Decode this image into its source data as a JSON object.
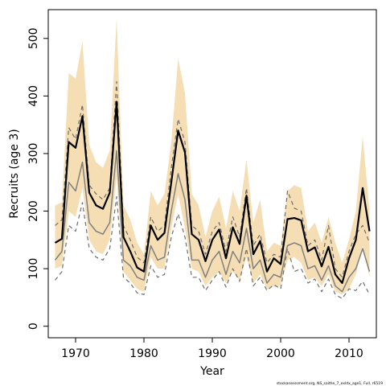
{
  "chart_data": {
    "type": "line",
    "xlabel": "Year",
    "ylabel": "Recruits (age 3)",
    "xlim": [
      1966,
      2014
    ],
    "ylim": [
      -20,
      550
    ],
    "xticks": [
      1970,
      1980,
      1990,
      2000,
      2010
    ],
    "yticks": [
      0,
      100,
      200,
      300,
      400,
      500
    ],
    "grid": false,
    "footnote": "stockassessment.org, NS_saithe_7_exldx_age1, Full, r6519",
    "colors": {
      "band": "#f5deb3",
      "main": "#000000",
      "secondary": "#808080"
    },
    "x": [
      1967,
      1968,
      1969,
      1970,
      1971,
      1972,
      1973,
      1974,
      1975,
      1976,
      1977,
      1978,
      1979,
      1980,
      1981,
      1982,
      1983,
      1984,
      1985,
      1986,
      1987,
      1988,
      1989,
      1990,
      1991,
      1992,
      1993,
      1994,
      1995,
      1996,
      1997,
      1998,
      1999,
      2000,
      2001,
      2002,
      2003,
      2004,
      2005,
      2006,
      2007,
      2008,
      2009,
      2010,
      2011,
      2012,
      2013
    ],
    "series": [
      {
        "role": "band-upper",
        "values": [
          210,
          215,
          440,
          430,
          495,
          315,
          285,
          275,
          305,
          535,
          210,
          185,
          145,
          125,
          235,
          210,
          230,
          320,
          465,
          405,
          230,
          210,
          155,
          200,
          225,
          170,
          235,
          200,
          290,
          180,
          220,
          130,
          145,
          140,
          235,
          245,
          240,
          165,
          180,
          145,
          190,
          145,
          110,
          150,
          200,
          330,
          200
        ]
      },
      {
        "role": "band-lower",
        "values": [
          100,
          105,
          200,
          190,
          240,
          150,
          130,
          125,
          150,
          260,
          95,
          80,
          65,
          60,
          120,
          100,
          100,
          170,
          230,
          170,
          100,
          95,
          70,
          85,
          95,
          75,
          95,
          80,
          120,
          75,
          90,
          65,
          70,
          70,
          115,
          120,
          110,
          80,
          85,
          70,
          90,
          60,
          55,
          65,
          90,
          140,
          85
        ]
      },
      {
        "role": "main",
        "values": [
          145,
          152,
          320,
          310,
          365,
          232,
          210,
          204,
          232,
          390,
          155,
          130,
          102,
          95,
          175,
          150,
          162,
          250,
          340,
          302,
          160,
          150,
          113,
          150,
          168,
          118,
          172,
          143,
          227,
          125,
          148,
          95,
          118,
          108,
          186,
          188,
          184,
          130,
          137,
          104,
          138,
          90,
          75,
          118,
          150,
          240,
          165
        ]
      },
      {
        "role": "secondary",
        "values": [
          115,
          130,
          250,
          235,
          285,
          180,
          165,
          160,
          180,
          305,
          115,
          105,
          85,
          80,
          140,
          115,
          120,
          200,
          265,
          220,
          115,
          115,
          85,
          115,
          130,
          90,
          130,
          110,
          170,
          100,
          115,
          75,
          90,
          85,
          140,
          145,
          140,
          100,
          105,
          80,
          105,
          70,
          60,
          85,
          100,
          135,
          95
        ]
      },
      {
        "role": "upper-dashed",
        "values": [
          175,
          185,
          345,
          325,
          385,
          245,
          230,
          220,
          240,
          425,
          175,
          150,
          120,
          110,
          190,
          165,
          175,
          275,
          360,
          320,
          175,
          165,
          125,
          165,
          180,
          130,
          190,
          155,
          240,
          140,
          160,
          110,
          125,
          120,
          235,
          205,
          200,
          140,
          150,
          115,
          175,
          100,
          85,
          130,
          160,
          175,
          145
        ]
      },
      {
        "role": "lower-dashed",
        "values": [
          80,
          95,
          175,
          165,
          215,
          135,
          120,
          115,
          135,
          225,
          85,
          75,
          58,
          55,
          105,
          85,
          90,
          155,
          195,
          155,
          85,
          85,
          62,
          80,
          95,
          68,
          100,
          78,
          135,
          70,
          85,
          62,
          72,
          65,
          135,
          95,
          100,
          75,
          82,
          60,
          82,
          55,
          48,
          65,
          62,
          78,
          55
        ]
      }
    ]
  }
}
